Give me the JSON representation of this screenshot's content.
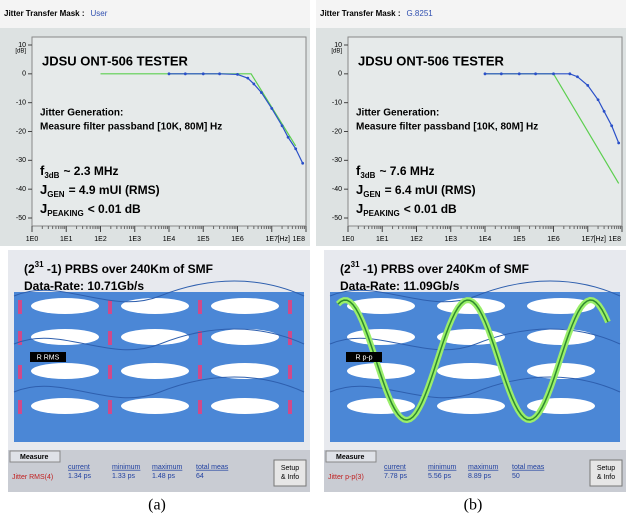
{
  "chart_data": [
    {
      "type": "line",
      "header_label": "Jitter Transfer Mask :",
      "header_value": "User",
      "title": "JDSU ONT-506 TESTER",
      "notes": [
        "Jitter Generation:",
        "Measure filter passband [10K, 80M] Hz"
      ],
      "results": [
        {
          "base": "f",
          "sub": "3dB",
          "text": "~  2.3 MHz"
        },
        {
          "base": "J",
          "sub": "GEN",
          "text": "= 4.9 mUI (RMS)"
        },
        {
          "base": "J",
          "sub": "PEAKING",
          "text": "< 0.01 dB"
        }
      ],
      "y_unit": "[dB]",
      "x_unit": "[Hz]",
      "log_x": true,
      "xlim": [
        1,
        100000000
      ],
      "ylim": [
        -50,
        10
      ],
      "xticks": [
        {
          "value": 1,
          "label": "1E0"
        },
        {
          "value": 10,
          "label": "1E1"
        },
        {
          "value": 100,
          "label": "1E2"
        },
        {
          "value": 1000,
          "label": "1E3"
        },
        {
          "value": 10000,
          "label": "1E4"
        },
        {
          "value": 100000,
          "label": "1E5"
        },
        {
          "value": 1000000,
          "label": "1E6"
        },
        {
          "value": 10000000,
          "label": "1E7"
        },
        {
          "value": 100000000,
          "label": "1E8"
        }
      ],
      "yticks": [
        -50,
        -40,
        -30,
        -20,
        -10,
        0,
        10
      ],
      "series": [
        {
          "color": "#5ccf4f",
          "x": [
            100,
            2500000,
            50000000
          ],
          "values": [
            0,
            0,
            -25
          ]
        },
        {
          "color": "#2a50c8",
          "x": [
            10000,
            30000,
            100000,
            300000,
            1000000,
            2000000,
            3000000,
            5000000,
            10000000,
            20000000,
            30000000,
            50000000,
            80000000
          ],
          "values": [
            0,
            0,
            0,
            0,
            -0.2,
            -1.5,
            -3.5,
            -6.5,
            -12,
            -18,
            -22,
            -26,
            -31
          ]
        }
      ]
    },
    {
      "type": "line",
      "header_label": "Jitter Transfer Mask :",
      "header_value": "G.8251",
      "title": "JDSU ONT-506 TESTER",
      "notes": [
        "Jitter Generation:",
        "Measure filter passband [10K, 80M] Hz"
      ],
      "results": [
        {
          "base": "f",
          "sub": "3dB",
          "text": "~  7.6 MHz"
        },
        {
          "base": "J",
          "sub": "GEN",
          "text": "= 6.4 mUI (RMS)"
        },
        {
          "base": "J",
          "sub": "PEAKING",
          "text": "< 0.01 dB"
        }
      ],
      "y_unit": "[dB]",
      "x_unit": "[Hz]",
      "log_x": true,
      "xlim": [
        1,
        100000000
      ],
      "ylim": [
        -50,
        10
      ],
      "xticks": [
        {
          "value": 1,
          "label": "1E0"
        },
        {
          "value": 10,
          "label": "1E1"
        },
        {
          "value": 100,
          "label": "1E2"
        },
        {
          "value": 1000,
          "label": "1E3"
        },
        {
          "value": 10000,
          "label": "1E4"
        },
        {
          "value": 100000,
          "label": "1E5"
        },
        {
          "value": 1000000,
          "label": "1E6"
        },
        {
          "value": 10000000,
          "label": "1E7"
        },
        {
          "value": 100000000,
          "label": "1E8"
        }
      ],
      "yticks": [
        -50,
        -40,
        -30,
        -20,
        -10,
        0,
        10
      ],
      "series": [
        {
          "color": "#5ccf4f",
          "x": [
            10000,
            1000000,
            80000000
          ],
          "values": [
            0,
            0,
            -38
          ]
        },
        {
          "color": "#2a50c8",
          "x": [
            10000,
            30000,
            100000,
            300000,
            1000000,
            3000000,
            5000000,
            10000000,
            20000000,
            30000000,
            50000000,
            80000000
          ],
          "values": [
            0,
            0,
            0,
            0,
            0,
            0,
            -1,
            -4,
            -9,
            -13,
            -18,
            -24
          ]
        }
      ]
    }
  ],
  "eye_panels": [
    {
      "title_pre": "(2",
      "title_sup": "31",
      "title_post": " -1) PRBS over 240Km of SMF",
      "rate": "Data-Rate: 10.71Gb/s",
      "marker": "R RMS",
      "tab": "Measure",
      "columns": [
        "current",
        "minimum",
        "maximum",
        "total meas"
      ],
      "row_label": "Jitter RMS(4)",
      "row": [
        "1.34 ps",
        "1.33 ps",
        "1.48 ps",
        "64"
      ],
      "button": [
        "Setup",
        "& Info"
      ]
    },
    {
      "title_pre": "(2",
      "title_sup": "31",
      "title_post": " -1) PRBS over 240Km of SMF",
      "rate": "Data-Rate: 11.09Gb/s",
      "marker": "R p-p",
      "tab": "Measure",
      "columns": [
        "current",
        "minimum",
        "maximum",
        "total meas"
      ],
      "row_label": "Jitter p-p(3)",
      "row": [
        "7.78 ps",
        "5.56 ps",
        "8.89 ps",
        "50"
      ],
      "button": [
        "Setup",
        "& Info"
      ]
    }
  ],
  "captions": [
    "(a)",
    "(b)"
  ]
}
